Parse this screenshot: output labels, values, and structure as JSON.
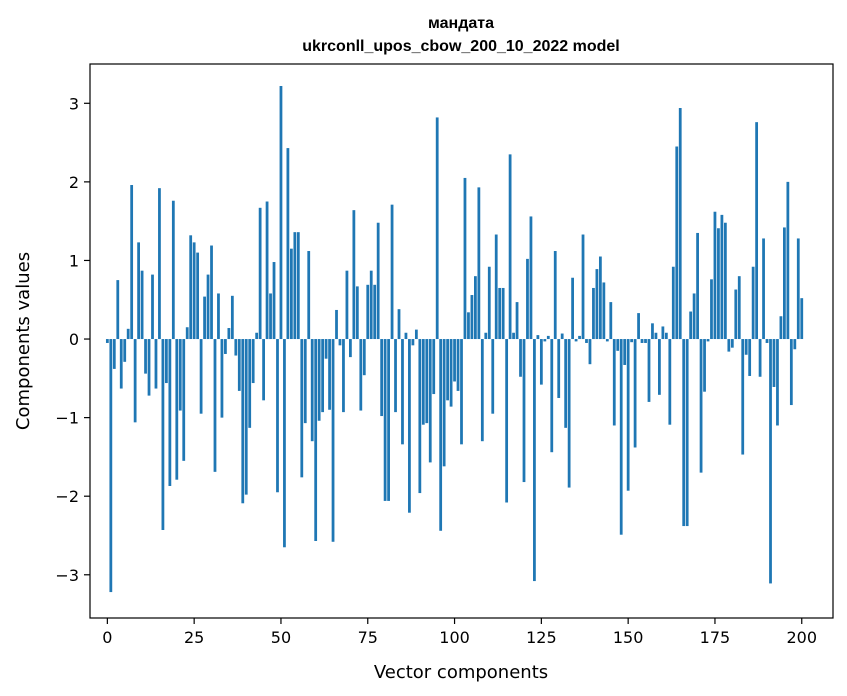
{
  "chart_data": {
    "type": "bar",
    "title_line1": "мандата",
    "title_line2": "ukrconll_upos_cbow_200_10_2022 model",
    "xlabel": "Vector components",
    "ylabel": "Components values",
    "xlim": [
      -5,
      209
    ],
    "ylim": [
      -3.55,
      3.5
    ],
    "xticks": [
      0,
      25,
      50,
      75,
      100,
      125,
      150,
      175,
      200
    ],
    "yticks": [
      -3,
      -2,
      -1,
      0,
      1,
      2,
      3
    ],
    "ytick_labels": [
      "−3",
      "−2",
      "−1",
      "0",
      "1",
      "2",
      "3"
    ],
    "grid": false,
    "legend": "none",
    "bar_color": "#1f77b4",
    "values": [
      -0.05,
      -3.22,
      -0.38,
      0.75,
      -0.63,
      -0.29,
      0.13,
      1.96,
      -1.06,
      1.23,
      0.87,
      -0.44,
      -0.72,
      0.82,
      -0.63,
      1.92,
      -2.43,
      -0.56,
      -1.87,
      1.76,
      -1.79,
      -0.91,
      -1.55,
      0.15,
      1.32,
      1.23,
      1.1,
      -0.95,
      0.54,
      0.82,
      1.19,
      -1.69,
      0.58,
      -1.0,
      -0.19,
      0.14,
      0.55,
      -0.21,
      -0.66,
      -2.09,
      -1.98,
      -1.13,
      -0.56,
      0.08,
      1.67,
      -0.78,
      1.75,
      0.58,
      0.98,
      -1.95,
      3.22,
      -2.65,
      2.43,
      1.15,
      1.36,
      1.36,
      -1.76,
      -1.07,
      1.12,
      -1.3,
      -2.57,
      -1.04,
      -0.93,
      -0.25,
      -0.9,
      -2.58,
      0.37,
      -0.08,
      -0.93,
      0.87,
      -0.23,
      1.64,
      0.67,
      -0.91,
      -0.46,
      0.69,
      0.87,
      0.69,
      1.48,
      -0.98,
      -2.06,
      -2.06,
      1.71,
      -0.93,
      0.38,
      -1.34,
      0.08,
      -2.21,
      -0.08,
      0.12,
      -1.96,
      -1.09,
      -1.07,
      -1.57,
      -0.7,
      2.82,
      -2.44,
      -1.62,
      -0.78,
      -0.86,
      -0.54,
      -0.66,
      -1.34,
      2.05,
      0.34,
      0.56,
      0.8,
      1.93,
      -1.3,
      0.08,
      0.92,
      -0.95,
      1.33,
      0.65,
      0.65,
      -2.08,
      2.35,
      0.08,
      0.47,
      -0.48,
      -1.82,
      1.02,
      1.56,
      -3.08,
      0.05,
      -0.58,
      -0.03,
      0.04,
      -1.44,
      1.12,
      -0.75,
      0.07,
      -1.13,
      -1.89,
      0.78,
      -0.03,
      0.04,
      1.33,
      -0.05,
      -0.32,
      0.65,
      0.89,
      1.05,
      0.72,
      -0.03,
      0.47,
      -1.1,
      -0.15,
      -2.49,
      -0.33,
      -1.93,
      -0.04,
      -1.38,
      0.33,
      -0.05,
      -0.05,
      -0.8,
      0.2,
      0.08,
      -0.71,
      0.16,
      0.08,
      -1.09,
      0.92,
      2.45,
      2.94,
      -2.38,
      -2.38,
      0.35,
      0.58,
      1.35,
      -1.7,
      -0.67,
      -0.03,
      0.76,
      1.62,
      1.41,
      1.58,
      1.48,
      -0.16,
      -0.11,
      0.63,
      0.8,
      -1.47,
      -0.2,
      -0.47,
      0.92,
      2.76,
      -0.48,
      1.28,
      -0.05,
      -3.11,
      -0.61,
      -1.1,
      0.29,
      1.42,
      2.0,
      -0.84,
      -0.13,
      1.28,
      0.52
    ]
  }
}
